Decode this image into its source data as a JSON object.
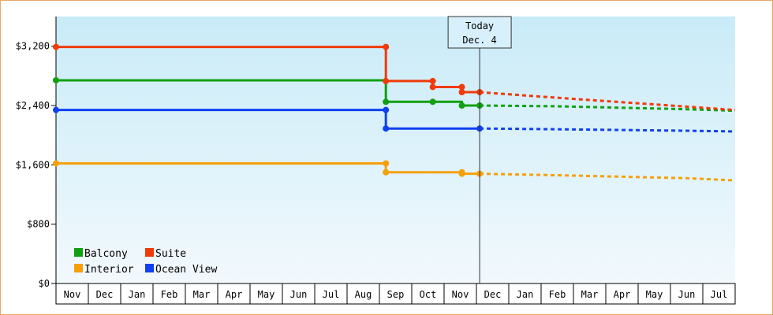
{
  "chart_data": {
    "type": "line",
    "title": "",
    "xlabel": "",
    "ylabel": "",
    "ylim": [
      0,
      3600
    ],
    "yticks": [
      {
        "value": 0,
        "label": "$0"
      },
      {
        "value": 800,
        "label": "$800"
      },
      {
        "value": 1600,
        "label": "$1,600"
      },
      {
        "value": 2400,
        "label": "$2,400"
      },
      {
        "value": 3200,
        "label": "$3,200"
      }
    ],
    "months": [
      "Nov",
      "Dec",
      "Jan",
      "Feb",
      "Mar",
      "Apr",
      "May",
      "Jun",
      "Jul",
      "Aug",
      "Sep",
      "Oct",
      "Nov",
      "Dec",
      "Jan",
      "Feb",
      "Mar",
      "Apr",
      "May",
      "Jun",
      "Jul"
    ],
    "x_range": [
      0,
      21
    ],
    "today": {
      "line1": "Today",
      "line2": "Dec. 4",
      "x": 13.1
    },
    "grid": false,
    "legend_position": "bottom-left",
    "series": [
      {
        "name": "Balcony",
        "color": "#11a011",
        "history": [
          [
            0,
            2740
          ],
          [
            10.2,
            2740
          ],
          [
            10.2,
            2450
          ],
          [
            11.65,
            2450
          ],
          [
            12.55,
            2450
          ],
          [
            12.55,
            2400
          ],
          [
            13.1,
            2400
          ]
        ],
        "markers": [
          [
            0,
            2740
          ],
          [
            10.2,
            2450
          ],
          [
            11.65,
            2450
          ],
          [
            12.55,
            2400
          ],
          [
            13.1,
            2400
          ]
        ],
        "forecast": [
          [
            13.1,
            2400
          ],
          [
            15.5,
            2390
          ],
          [
            17.5,
            2370
          ],
          [
            19.5,
            2350
          ],
          [
            21,
            2330
          ]
        ]
      },
      {
        "name": "Suite",
        "color": "#f03a0a",
        "history": [
          [
            0,
            3190
          ],
          [
            10.2,
            3190
          ],
          [
            10.2,
            2730
          ],
          [
            11.65,
            2730
          ],
          [
            11.65,
            2650
          ],
          [
            12.55,
            2650
          ],
          [
            12.55,
            2580
          ],
          [
            13.1,
            2580
          ]
        ],
        "markers": [
          [
            0,
            3190
          ],
          [
            10.2,
            3190
          ],
          [
            10.2,
            2730
          ],
          [
            11.65,
            2730
          ],
          [
            11.65,
            2650
          ],
          [
            12.55,
            2650
          ],
          [
            12.55,
            2580
          ],
          [
            13.1,
            2580
          ]
        ],
        "forecast": [
          [
            13.1,
            2580
          ],
          [
            15,
            2520
          ],
          [
            17,
            2460
          ],
          [
            19,
            2400
          ],
          [
            21,
            2340
          ]
        ]
      },
      {
        "name": "Interior",
        "color": "#f5a00a",
        "history": [
          [
            0,
            1620
          ],
          [
            10.2,
            1620
          ],
          [
            10.2,
            1500
          ],
          [
            12.55,
            1500
          ],
          [
            12.55,
            1480
          ],
          [
            13.1,
            1480
          ]
        ],
        "markers": [
          [
            0,
            1620
          ],
          [
            10.2,
            1620
          ],
          [
            10.2,
            1500
          ],
          [
            12.55,
            1500
          ],
          [
            12.55,
            1480
          ],
          [
            13.1,
            1480
          ]
        ],
        "forecast": [
          [
            13.1,
            1480
          ],
          [
            15.5,
            1460
          ],
          [
            17.5,
            1440
          ],
          [
            19.5,
            1420
          ],
          [
            21,
            1390
          ]
        ]
      },
      {
        "name": "Ocean View",
        "color": "#1040f0",
        "history": [
          [
            0,
            2340
          ],
          [
            10.2,
            2340
          ],
          [
            10.2,
            2090
          ],
          [
            13.1,
            2090
          ]
        ],
        "markers": [
          [
            0,
            2340
          ],
          [
            10.2,
            2340
          ],
          [
            10.2,
            2090
          ],
          [
            13.1,
            2090
          ]
        ],
        "forecast": [
          [
            13.1,
            2090
          ],
          [
            15.5,
            2080
          ],
          [
            17.5,
            2070
          ],
          [
            19.5,
            2060
          ],
          [
            21,
            2050
          ]
        ]
      }
    ],
    "legend_order": [
      "Balcony",
      "Suite",
      "Interior",
      "Ocean View"
    ]
  }
}
